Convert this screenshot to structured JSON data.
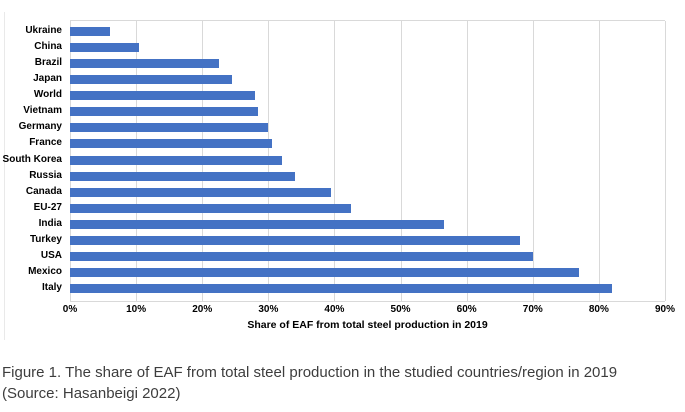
{
  "chart_data": {
    "type": "bar",
    "orientation": "horizontal",
    "title": "",
    "xlabel": "Share of EAF from total steel production in 2019",
    "ylabel": "",
    "categories": [
      "Ukraine",
      "China",
      "Brazil",
      "Japan",
      "World",
      "Vietnam",
      "Germany",
      "France",
      "South Korea",
      "Russia",
      "Canada",
      "EU-27",
      "India",
      "Turkey",
      "USA",
      "Mexico",
      "Italy"
    ],
    "values_percent": [
      6,
      10.5,
      22.5,
      24.5,
      28,
      28.5,
      30,
      30.5,
      32,
      34,
      39.5,
      42.5,
      56.5,
      68,
      70,
      77,
      82
    ],
    "xlim": [
      0,
      90
    ],
    "xtick_step": 10,
    "xticks": [
      "0%",
      "10%",
      "20%",
      "30%",
      "40%",
      "50%",
      "60%",
      "70%",
      "80%",
      "90%"
    ],
    "grid": true,
    "legend": false,
    "bar_color": "#4472C4",
    "gridline_color": "#D9D9D9",
    "text_color": "#000000"
  },
  "caption": {
    "line1": "Figure 1. The share of EAF from total steel production in the studied countries/region in 2019",
    "line2": "(Source: Hasanbeigi 2022)"
  }
}
